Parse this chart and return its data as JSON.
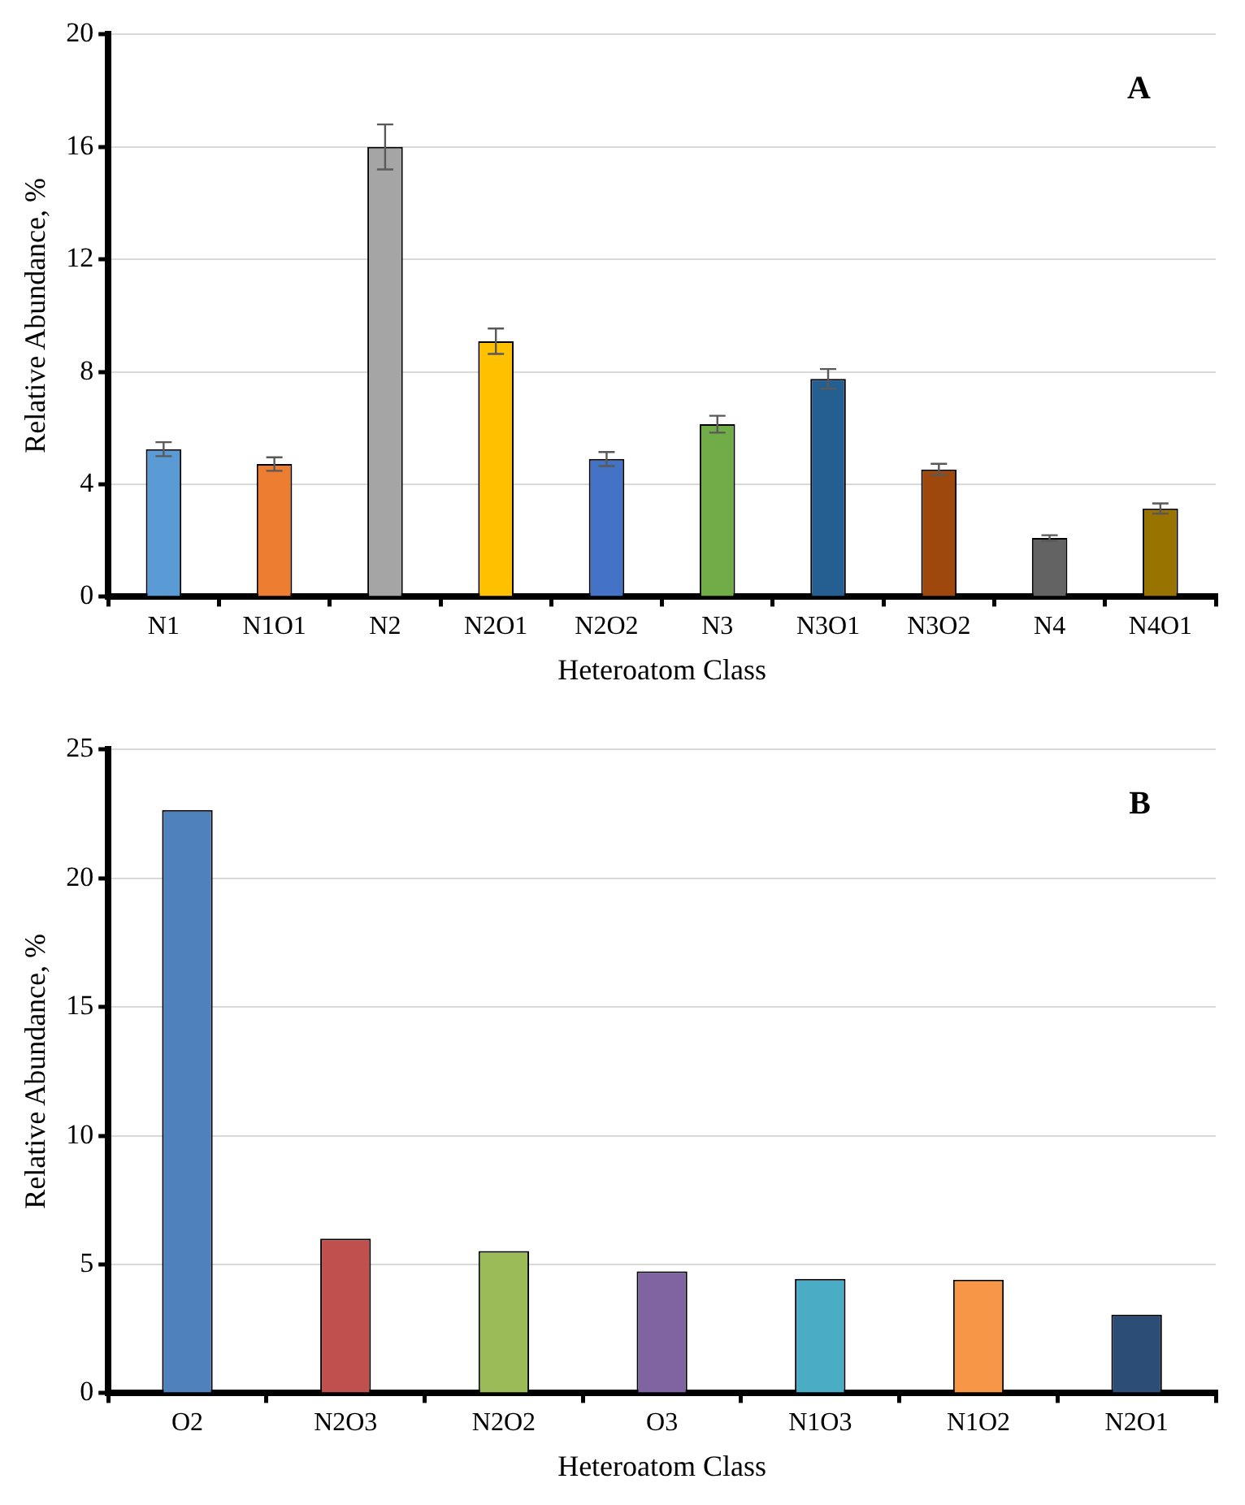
{
  "chart_data": [
    {
      "type": "bar",
      "xlabel": "Heteroatom Class",
      "ylabel": "Relative Abundance, %",
      "categories": [
        "N1",
        "N1O1",
        "N2",
        "N2O1",
        "N2O2",
        "N3",
        "N3O1",
        "N3O2",
        "N4",
        "N4O1"
      ],
      "values": [
        5.25,
        4.72,
        16.0,
        9.09,
        4.9,
        6.14,
        7.75,
        4.53,
        2.09,
        3.14
      ],
      "errors": [
        0.25,
        0.24,
        0.8,
        0.45,
        0.25,
        0.3,
        0.35,
        0.2,
        0.1,
        0.18
      ],
      "colors": [
        "#5b9bd5",
        "#ed7d31",
        "#a5a5a5",
        "#ffc000",
        "#4472c4",
        "#70ad47",
        "#255e91",
        "#9e480e",
        "#636363",
        "#997300"
      ],
      "ylim": [
        0,
        20
      ],
      "yticks": [
        0,
        4,
        8,
        12,
        16,
        20
      ],
      "grid": "y",
      "legend": false,
      "annotations": [
        "A"
      ]
    },
    {
      "type": "bar",
      "xlabel": "Heteroatom Class",
      "ylabel": "Relative Abundance, %",
      "categories": [
        "O2",
        "N2O3",
        "N2O2",
        "O3",
        "N1O3",
        "N1O2",
        "N2O1"
      ],
      "values": [
        22.65,
        6.0,
        5.52,
        4.73,
        4.44,
        4.41,
        3.05
      ],
      "colors": [
        "#4f81bd",
        "#c0504d",
        "#9bbb59",
        "#8064a2",
        "#4bacc6",
        "#f79646",
        "#2c4d75"
      ],
      "ylim": [
        0,
        25
      ],
      "yticks": [
        0,
        5,
        10,
        15,
        20,
        25
      ],
      "grid": "y",
      "legend": false,
      "annotations": [
        "B"
      ]
    }
  ]
}
